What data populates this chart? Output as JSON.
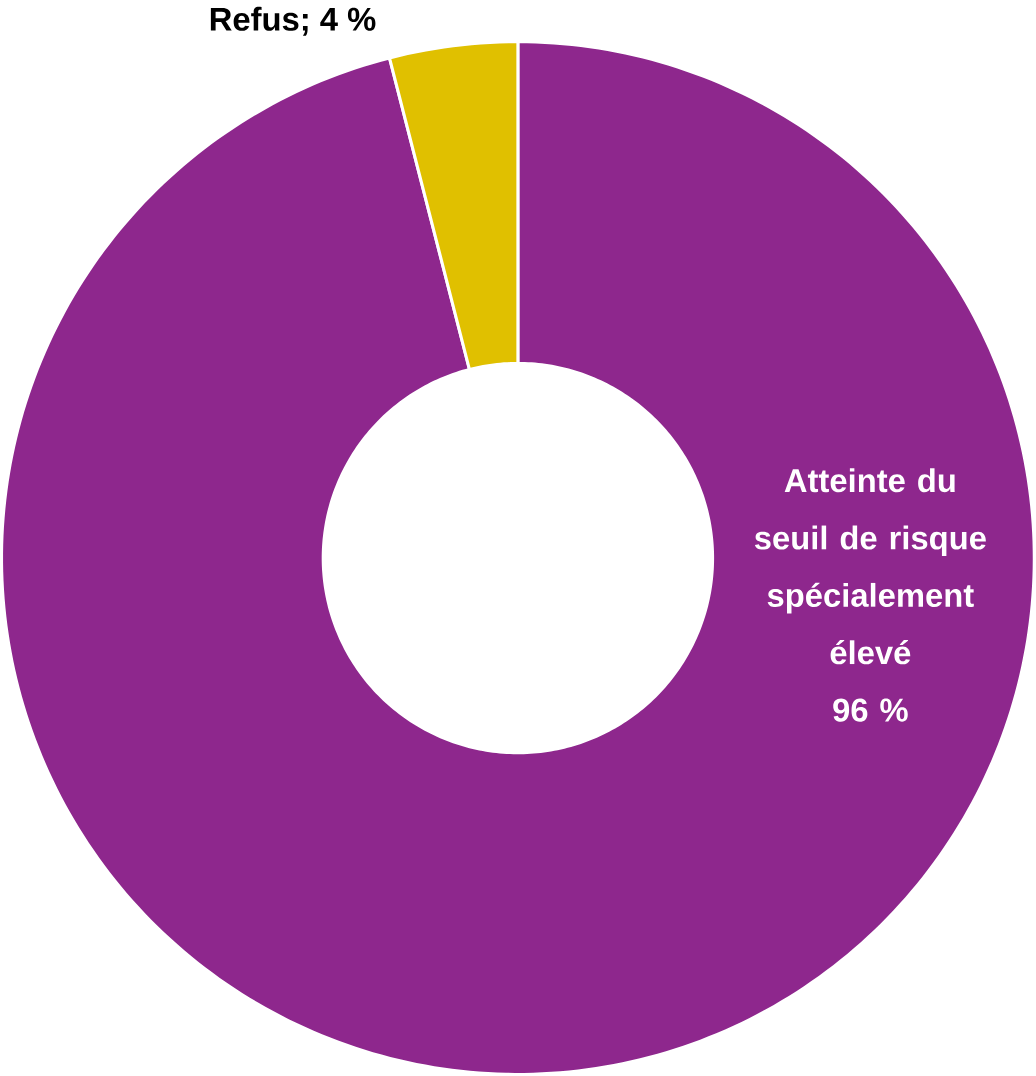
{
  "chart_data": {
    "type": "donut",
    "categories": [
      "Atteinte du seuil de risque spécialement élevé",
      "Refus"
    ],
    "values": [
      96,
      4
    ],
    "value_labels": [
      "96 %",
      "; 4 %"
    ],
    "colors": [
      "#8e278d",
      "#e0c000"
    ]
  }
}
